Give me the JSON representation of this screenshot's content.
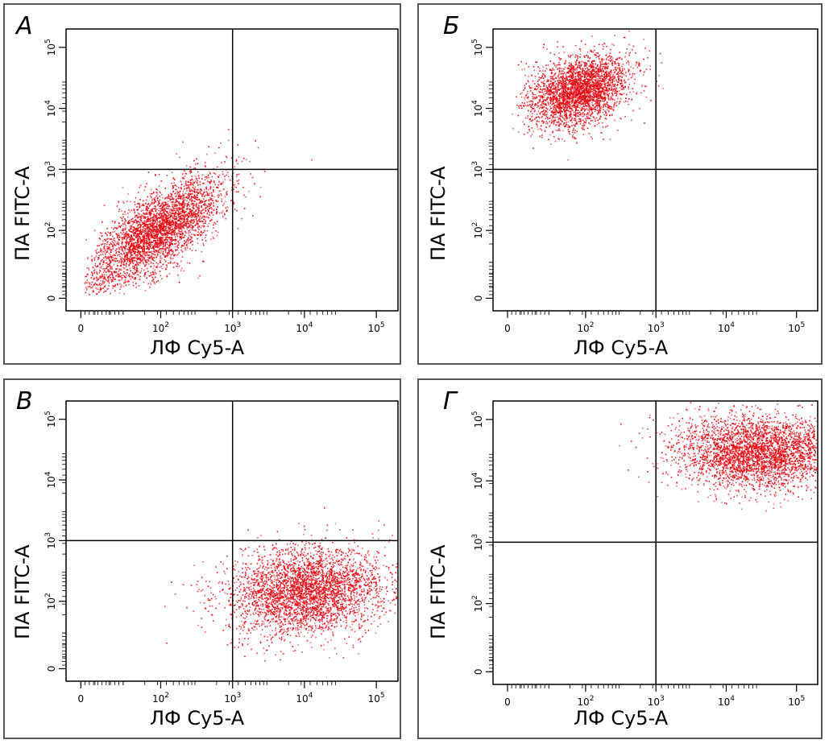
{
  "colors": {
    "points": "#e8000b",
    "frame": "#555555"
  },
  "chart_data": [
    {
      "type": "scatter",
      "panel_label": "А",
      "xlabel": "ЛФ Cy5-A",
      "ylabel": "ПА FITC-A",
      "x_ticks": [
        "0",
        "10",
        "10",
        "10",
        "10"
      ],
      "x_tick_exps": [
        "",
        "2",
        "3",
        "4",
        "5"
      ],
      "y_ticks": [
        "0",
        "10",
        "10",
        "10",
        "10"
      ],
      "y_tick_exps": [
        "",
        "2",
        "3",
        "4",
        "5"
      ],
      "axis_scale": "biexponential",
      "xlim": [
        -50,
        200000
      ],
      "ylim": [
        -50,
        200000
      ],
      "quadrant_gate": {
        "x": 1000,
        "y": 1000
      },
      "cluster": {
        "x_center": 90,
        "y_center": 100,
        "x_spread_decades": 0.45,
        "y_spread_decades": 0.45,
        "correlation": 0.7,
        "n_points": 3500
      }
    },
    {
      "type": "scatter",
      "panel_label": "Б",
      "xlabel": "ЛФ Cy5-A",
      "ylabel": "ПА FITC-A",
      "x_ticks": [
        "0",
        "10",
        "10",
        "10",
        "10"
      ],
      "x_tick_exps": [
        "",
        "2",
        "3",
        "4",
        "5"
      ],
      "y_ticks": [
        "0",
        "10",
        "10",
        "10",
        "10"
      ],
      "y_tick_exps": [
        "",
        "2",
        "3",
        "4",
        "5"
      ],
      "axis_scale": "biexponential",
      "xlim": [
        -50,
        200000
      ],
      "ylim": [
        -50,
        200000
      ],
      "quadrant_gate": {
        "x": 1000,
        "y": 1000
      },
      "cluster": {
        "x_center": 80,
        "y_center": 20000,
        "x_spread_decades": 0.35,
        "y_spread_decades": 0.3,
        "correlation": 0.3,
        "n_points": 3000
      }
    },
    {
      "type": "scatter",
      "panel_label": "В",
      "xlabel": "ЛФ Cy5-A",
      "ylabel": "ПА FITC-A",
      "x_ticks": [
        "0",
        "10",
        "10",
        "10",
        "10"
      ],
      "x_tick_exps": [
        "",
        "2",
        "3",
        "4",
        "5"
      ],
      "y_ticks": [
        "0",
        "10",
        "10",
        "10",
        "10"
      ],
      "y_tick_exps": [
        "",
        "2",
        "3",
        "4",
        "5"
      ],
      "axis_scale": "biexponential",
      "xlim": [
        -50,
        200000
      ],
      "ylim": [
        -50,
        200000
      ],
      "quadrant_gate": {
        "x": 1000,
        "y": 1000
      },
      "cluster": {
        "x_center": 10000,
        "y_center": 150,
        "x_spread_decades": 0.55,
        "y_spread_decades": 0.35,
        "correlation": 0.1,
        "n_points": 3500
      }
    },
    {
      "type": "scatter",
      "panel_label": "Г",
      "xlabel": "ЛФ Cy5-A",
      "ylabel": "ПА FITC-A",
      "x_ticks": [
        "0",
        "10",
        "10",
        "10",
        "10"
      ],
      "x_tick_exps": [
        "",
        "2",
        "3",
        "4",
        "5"
      ],
      "y_ticks": [
        "0",
        "10",
        "10",
        "10",
        "10"
      ],
      "y_tick_exps": [
        "",
        "2",
        "3",
        "4",
        "5"
      ],
      "axis_scale": "biexponential",
      "xlim": [
        -50,
        200000
      ],
      "ylim": [
        -50,
        200000
      ],
      "quadrant_gate": {
        "x": 1000,
        "y": 1000
      },
      "cluster": {
        "x_center": 30000,
        "y_center": 30000,
        "x_spread_decades": 0.6,
        "y_spread_decades": 0.3,
        "correlation": 0.0,
        "n_points": 3500
      }
    }
  ]
}
